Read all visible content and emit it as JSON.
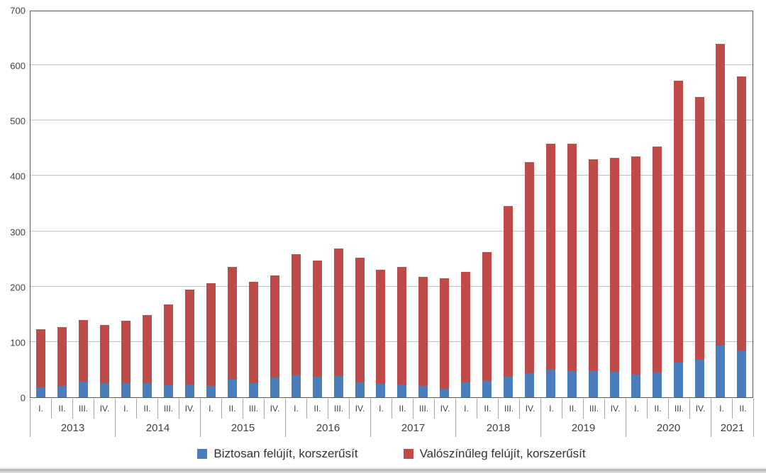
{
  "chart_data": {
    "type": "bar",
    "stacked": true,
    "title": "",
    "xlabel": "",
    "ylabel": "",
    "ylim": [
      0,
      700
    ],
    "yticks": [
      0,
      100,
      200,
      300,
      400,
      500,
      600,
      700
    ],
    "grid": true,
    "legend_position": "bottom",
    "x_axis": {
      "years": [
        {
          "label": "2013",
          "quarters": [
            "I.",
            "II.",
            "III.",
            "IV."
          ]
        },
        {
          "label": "2014",
          "quarters": [
            "I.",
            "II.",
            "III.",
            "IV."
          ]
        },
        {
          "label": "2015",
          "quarters": [
            "I.",
            "II.",
            "III.",
            "IV."
          ]
        },
        {
          "label": "2016",
          "quarters": [
            "I.",
            "II.",
            "III.",
            "IV."
          ]
        },
        {
          "label": "2017",
          "quarters": [
            "I.",
            "II.",
            "III.",
            "IV."
          ]
        },
        {
          "label": "2018",
          "quarters": [
            "I.",
            "II.",
            "III.",
            "IV."
          ]
        },
        {
          "label": "2019",
          "quarters": [
            "I.",
            "II.",
            "III.",
            "IV."
          ]
        },
        {
          "label": "2020",
          "quarters": [
            "I.",
            "II.",
            "III.",
            "IV."
          ]
        },
        {
          "label": "2021",
          "quarters": [
            "I.",
            "II."
          ]
        }
      ]
    },
    "categories": [
      "2013 I.",
      "2013 II.",
      "2013 III.",
      "2013 IV.",
      "2014 I.",
      "2014 II.",
      "2014 III.",
      "2014 IV.",
      "2015 I.",
      "2015 II.",
      "2015 III.",
      "2015 IV.",
      "2016 I.",
      "2016 II.",
      "2016 III.",
      "2016 IV.",
      "2017 I.",
      "2017 II.",
      "2017 III.",
      "2017 IV.",
      "2018 I.",
      "2018 II.",
      "2018 III.",
      "2018 IV.",
      "2019 I.",
      "2019 II.",
      "2019 III.",
      "2019 IV.",
      "2020 I.",
      "2020 II.",
      "2020 III.",
      "2020 IV.",
      "2021 I.",
      "2021 II."
    ],
    "series": [
      {
        "name": "Biztosan felújít, korszerűsít",
        "color": "#4A7EBB",
        "values": [
          18,
          21,
          28,
          25,
          26,
          26,
          22,
          23,
          21,
          32,
          26,
          36,
          40,
          37,
          38,
          27,
          24,
          23,
          20,
          16,
          27,
          30,
          37,
          44,
          50,
          47,
          48,
          46,
          41,
          45,
          63,
          68,
          93,
          84
        ]
      },
      {
        "name": "Valószínűleg felújít, korszerűsít",
        "color": "#BE4B48",
        "values": [
          105,
          106,
          112,
          105,
          112,
          122,
          146,
          171,
          185,
          203,
          183,
          184,
          219,
          210,
          231,
          225,
          206,
          213,
          198,
          199,
          199,
          232,
          308,
          381,
          408,
          411,
          382,
          387,
          394,
          408,
          509,
          475,
          545,
          496
        ]
      }
    ],
    "stacked_totals": [
      123,
      127,
      140,
      130,
      138,
      148,
      168,
      194,
      206,
      235,
      209,
      220,
      259,
      247,
      269,
      252,
      230,
      236,
      218,
      215,
      226,
      262,
      345,
      425,
      458,
      458,
      430,
      433,
      435,
      453,
      572,
      543,
      638,
      580
    ]
  },
  "colors": {
    "gridline": "#BFBFBF",
    "plot_border": "#595959",
    "tick_line": "#A6A6A6",
    "axis_text": "#404040"
  }
}
